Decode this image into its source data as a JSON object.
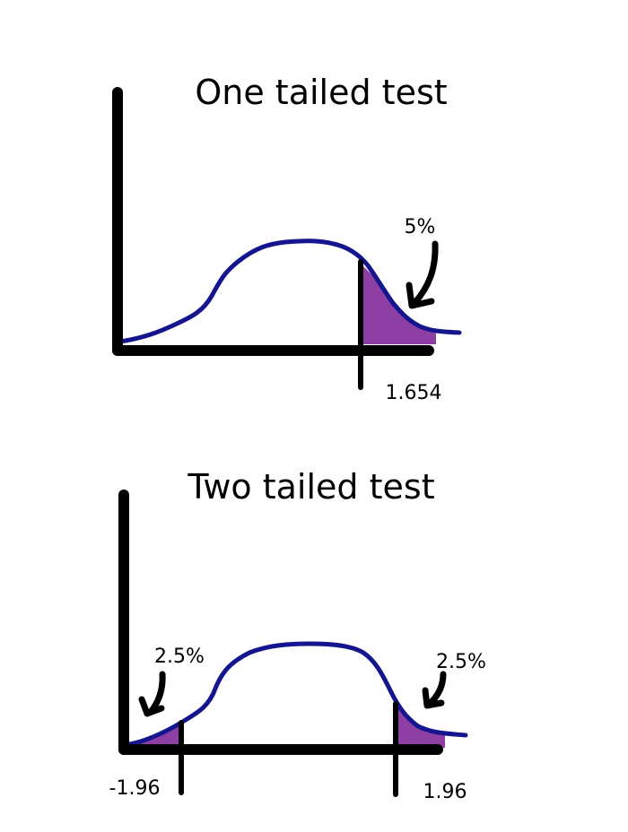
{
  "colors": {
    "curve": "#15168f",
    "shade": "#8e3fa3",
    "axis": "#000000"
  },
  "diagrams": {
    "one_tailed": {
      "title": "One tailed test",
      "percent_label": "5%",
      "critical_value": "1.654"
    },
    "two_tailed": {
      "title": "Two tailed test",
      "left_percent": "2.5%",
      "right_percent": "2.5%",
      "left_critical": "-1.96",
      "right_critical": "1.96"
    }
  }
}
